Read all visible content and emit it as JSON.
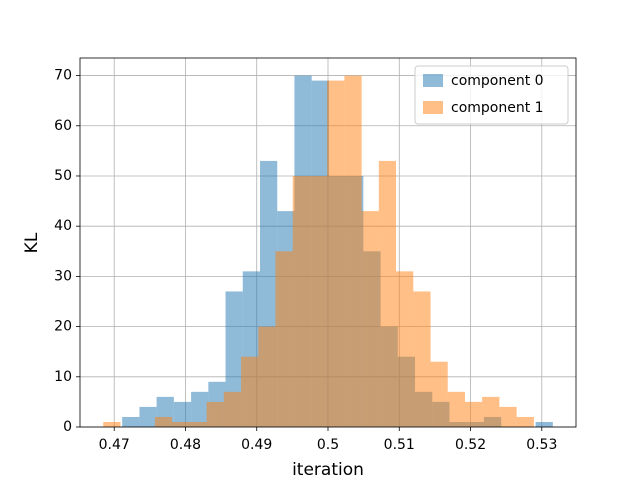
{
  "chart_data": {
    "type": "histogram",
    "xlabel": "iteration",
    "ylabel": "KL",
    "xlim": [
      0.4652,
      0.5348
    ],
    "ylim": [
      0,
      73.5
    ],
    "xticks": [
      0.47,
      0.48,
      0.49,
      0.5,
      0.51,
      0.52,
      0.53
    ],
    "yticks": [
      0,
      10,
      20,
      30,
      40,
      50,
      60,
      70
    ],
    "grid": true,
    "legend": "upper right",
    "alpha": 0.5,
    "series": [
      {
        "name": "component 0",
        "color": "#1f77b4",
        "bins": [
          0.47112,
          0.47354,
          0.47595,
          0.47837,
          0.48079,
          0.48321,
          0.48562,
          0.48804,
          0.49046,
          0.49288,
          0.49529,
          0.49771,
          0.50012,
          0.50254,
          0.50496,
          0.50738,
          0.50979,
          0.51221,
          0.51463,
          0.51704,
          0.51946,
          0.52188,
          0.5243,
          0.52671,
          0.52913,
          0.53155
        ],
        "values": [
          2,
          4,
          6,
          5,
          7,
          9,
          27,
          31,
          53,
          43,
          70,
          69,
          50,
          50,
          35,
          20,
          14,
          7,
          5,
          1,
          1,
          2,
          0,
          0,
          1
        ]
      },
      {
        "name": "component 1",
        "color": "#ff7f0e",
        "bins": [
          0.46846,
          0.47088,
          0.47329,
          0.47571,
          0.47813,
          0.48055,
          0.48296,
          0.48538,
          0.4878,
          0.49022,
          0.49263,
          0.49505,
          0.49746,
          0.49988,
          0.5023,
          0.50472,
          0.50713,
          0.50955,
          0.51197,
          0.51439,
          0.5168,
          0.51922,
          0.52163,
          0.52405,
          0.52647,
          0.52889
        ],
        "values": [
          1,
          0,
          0,
          2,
          1,
          1,
          5,
          7,
          14,
          20,
          35,
          50,
          50,
          69,
          70,
          43,
          53,
          31,
          27,
          13,
          7,
          5,
          6,
          4,
          2
        ]
      }
    ]
  }
}
